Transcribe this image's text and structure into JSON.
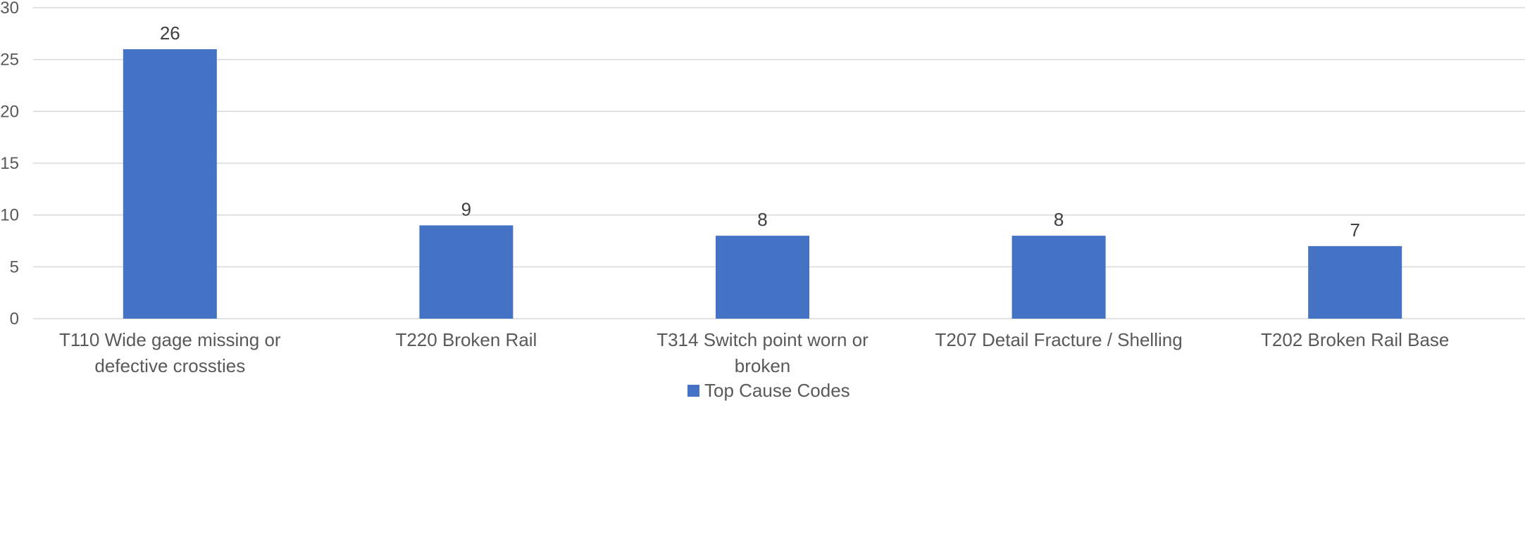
{
  "chart_data": {
    "type": "bar",
    "title": "",
    "xlabel": "",
    "ylabel": "",
    "categories": [
      [
        "T110 Wide gage missing or",
        "defective crossties"
      ],
      [
        "T220 Broken Rail"
      ],
      [
        "T314 Switch point worn or",
        "broken"
      ],
      [
        "T207 Detail Fracture / Shelling"
      ],
      [
        "T202 Broken Rail Base"
      ]
    ],
    "series": [
      {
        "name": "Top Cause Codes",
        "values": [
          26,
          9,
          8,
          8,
          7
        ],
        "color": "#4472C4"
      }
    ],
    "ylim": [
      0,
      30
    ],
    "yticks": [
      0,
      5,
      10,
      15,
      20,
      25,
      30
    ],
    "grid": true,
    "data_labels": true,
    "legend_position": "bottom"
  },
  "colors": {
    "bar": "#4472C4",
    "grid": "#D9D9D9",
    "text": "#595959",
    "label_text": "#404040"
  }
}
